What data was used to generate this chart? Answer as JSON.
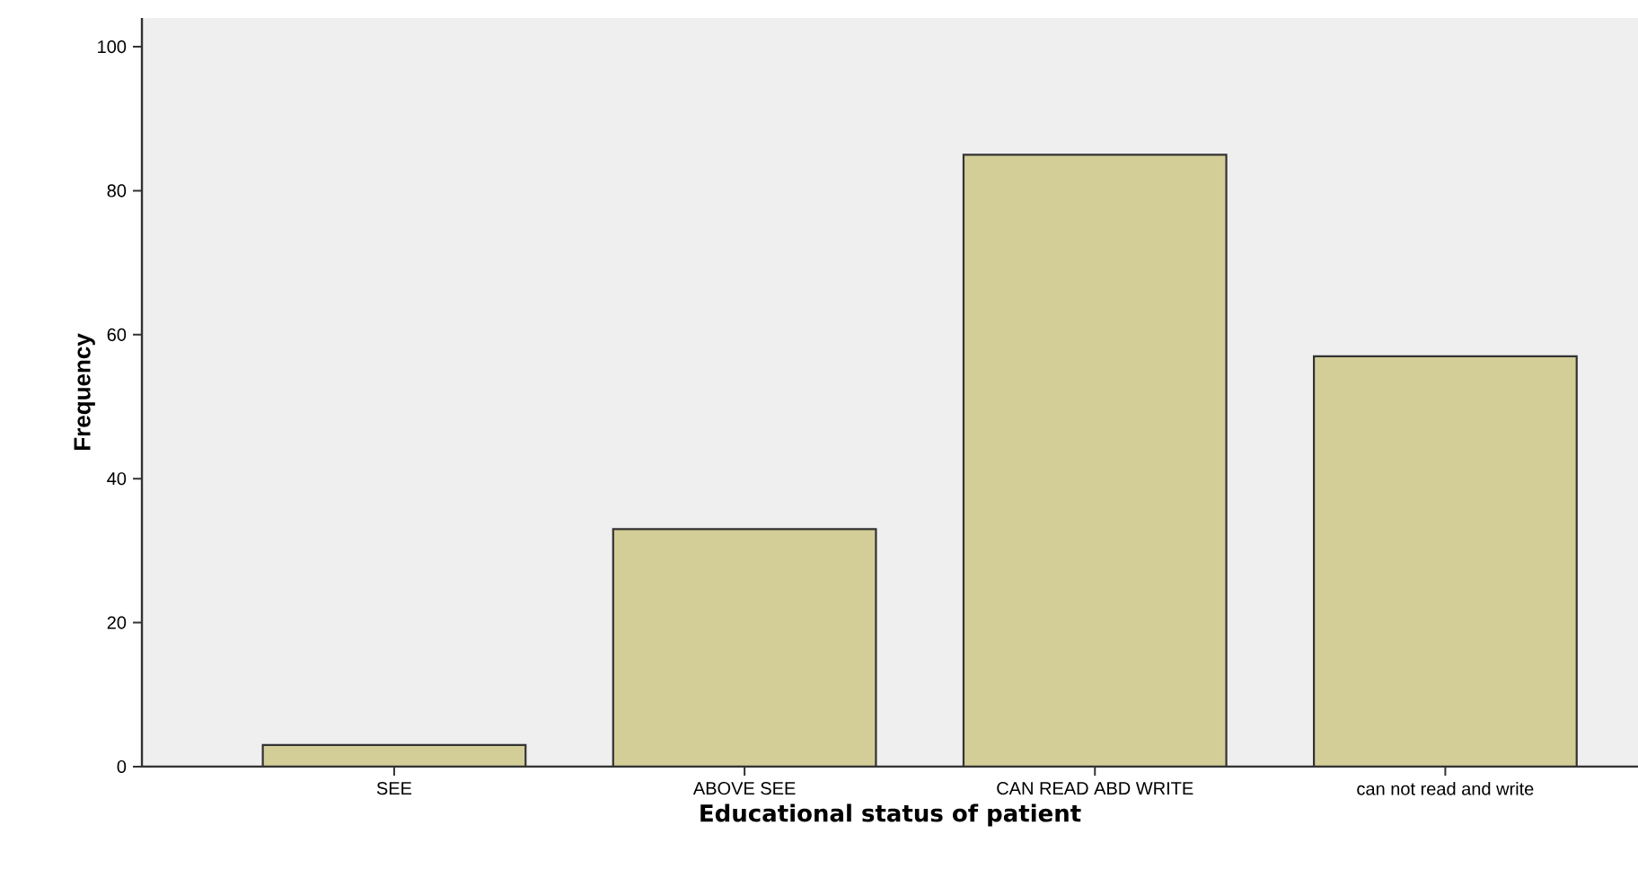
{
  "chart_data": {
    "type": "bar",
    "xlabel": "Educational status of patient",
    "ylabel": "Frequency",
    "categories": [
      "SEE",
      "ABOVE SEE",
      "CAN READ ABD WRITE",
      "can not read and write"
    ],
    "values": [
      3,
      33,
      85,
      57
    ],
    "color": "#d3ce97",
    "ylim": [
      0,
      104
    ],
    "yticks": [
      0,
      20,
      40,
      60,
      80,
      100
    ],
    "grid": false
  }
}
